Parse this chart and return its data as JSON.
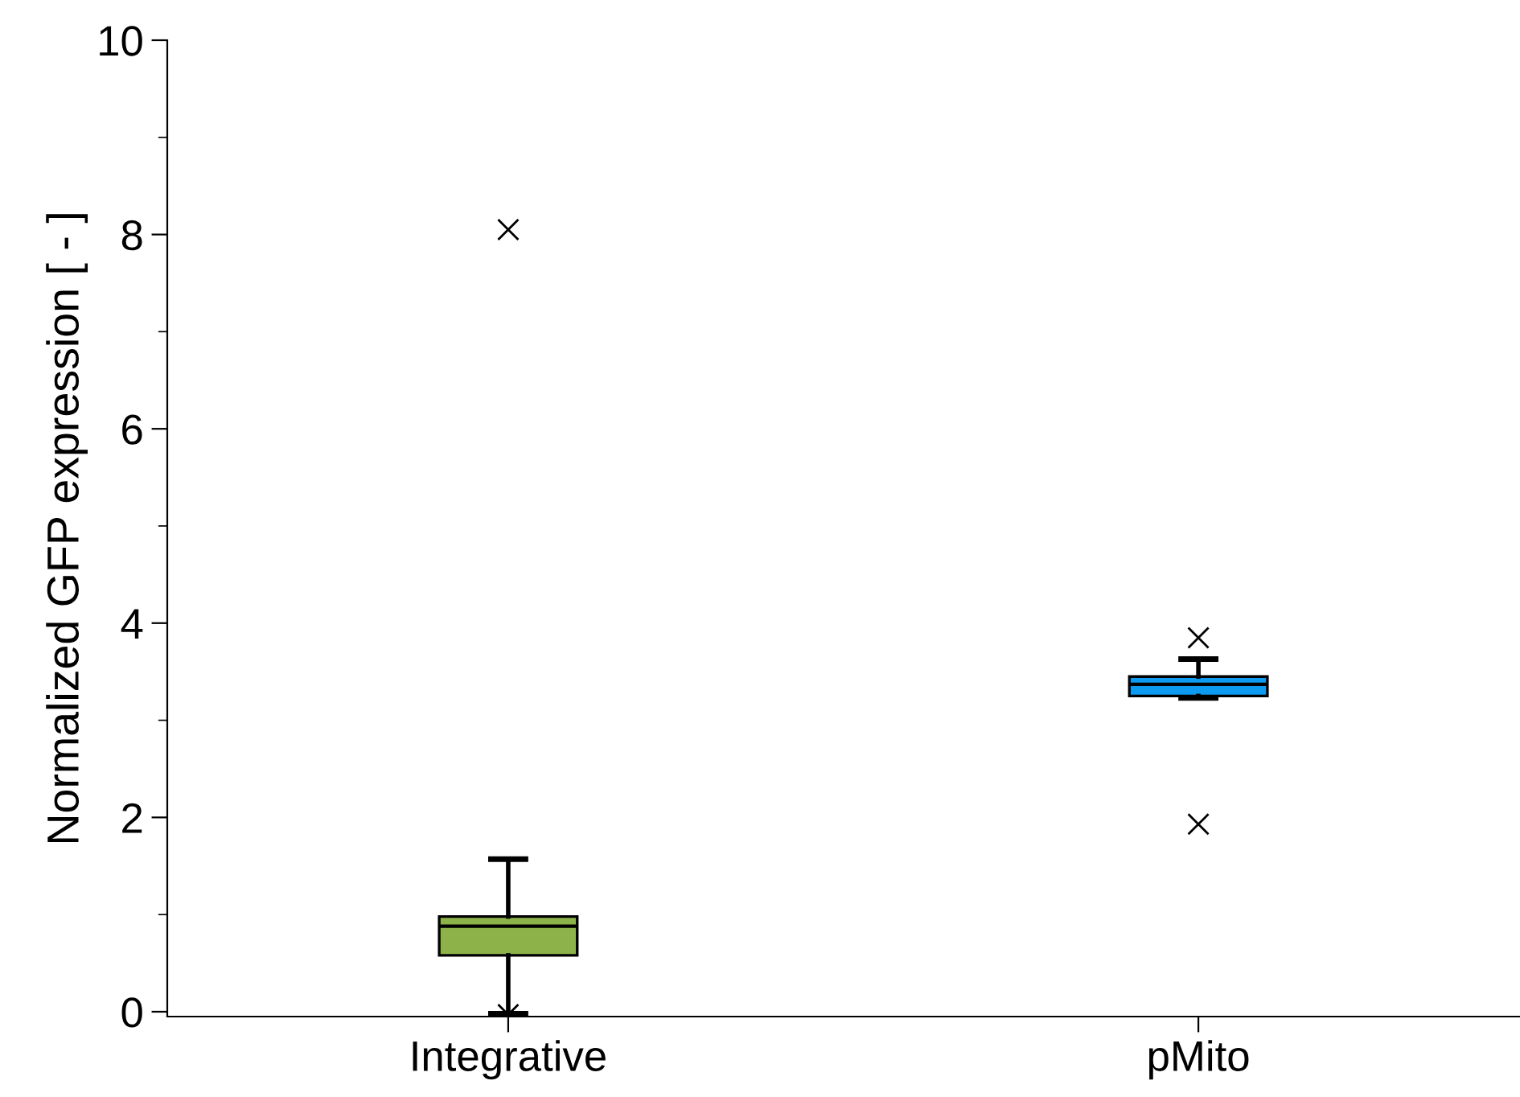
{
  "chart_data": {
    "type": "box",
    "ylabel": "Normalized GFP expression [ - ]",
    "categories": [
      "Integrative",
      "pMito"
    ],
    "colors": [
      "#8db249",
      "#0d9bf2"
    ],
    "boxes": [
      {
        "low": -0.02,
        "q1": 0.58,
        "median": 0.88,
        "q3": 0.98,
        "high": 1.57,
        "outliers": [
          8.05,
          -0.03
        ]
      },
      {
        "low": 3.23,
        "q1": 3.25,
        "median": 3.37,
        "q3": 3.45,
        "high": 3.63,
        "outliers": [
          3.85,
          1.93
        ]
      }
    ],
    "ylim": [
      -0.05,
      10
    ],
    "yticks": [
      0,
      2,
      4,
      6,
      8,
      10
    ],
    "grid": false,
    "marker": "cross"
  }
}
